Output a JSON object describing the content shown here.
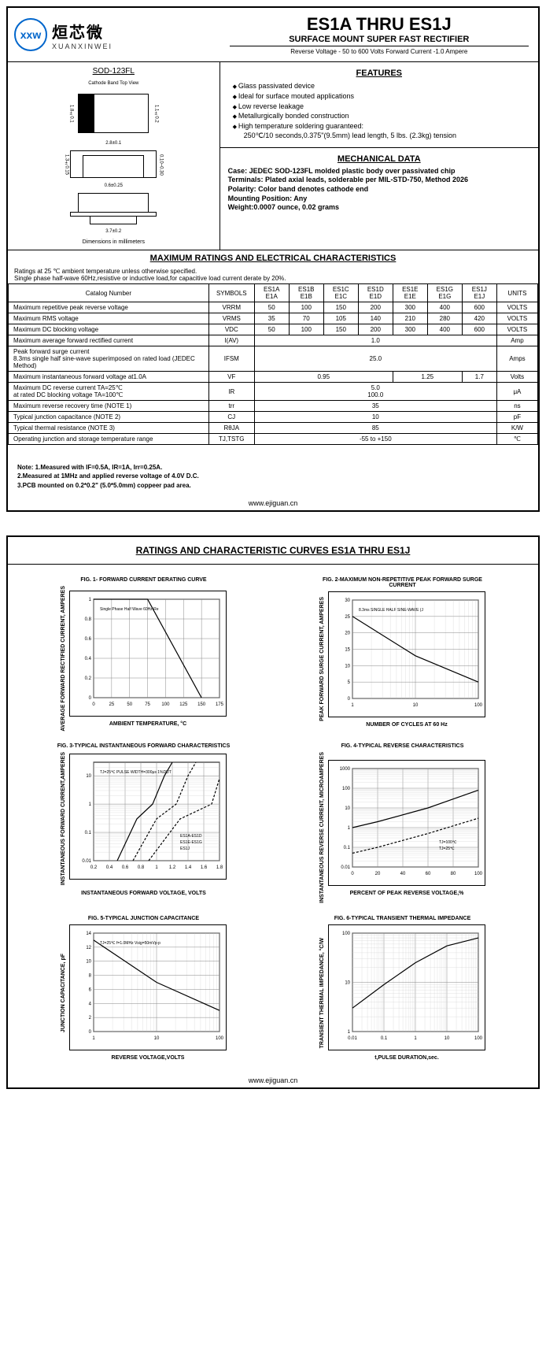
{
  "header": {
    "logo_cn": "烜芯微",
    "logo_en": "XUANXINWEI",
    "logo_mark": "xxw",
    "title": "ES1A THRU ES1J",
    "subtitle": "SURFACE MOUNT SUPER FAST RECTIFIER",
    "spec": "Reverse Voltage - 50 to 600 Volts    Forward Current -1.0 Ampere"
  },
  "package": {
    "label": "SOD-123FL",
    "top_label": "Cathode Band Top View",
    "dim1": "1.8±0.1",
    "dim2": "1.1±0.2",
    "dim3": "2.8±0.1",
    "dim4": "0.10~0.30",
    "dim5": "0.6±0.25",
    "dim6": "1.3±0.15",
    "dim7": "3.7±0.2",
    "note": "Dimensions in millimeters"
  },
  "features": {
    "title": "FEATURES",
    "items": [
      "Glass passivated device",
      "Ideal for surface mouted applications",
      "Low reverse leakage",
      "Metallurgically bonded construction",
      "High temperature soldering guaranteed:"
    ],
    "extra": "250℃/10 seconds,0.375\"(9.5mm) lead length, 5 lbs. (2.3kg) tension"
  },
  "mechanical": {
    "title": "MECHANICAL DATA",
    "case": "Case: JEDEC SOD-123FL molded plastic body over passivated chip",
    "terminals": "Terminals: Plated axial leads, solderable per MIL-STD-750, Method 2026",
    "polarity": "Polarity: Color band denotes cathode end",
    "mounting": "Mounting Position: Any",
    "weight": "Weight:0.0007 ounce, 0.02 grams"
  },
  "ratings": {
    "title": "MAXIMUM RATINGS AND ELECTRICAL CHARACTERISTICS",
    "note": "Ratings at 25 ℃ ambient temperature unless otherwise specified.\nSingle phase half-wave 60Hz,resistive or inductive load,for capacitive load current derate by 20%.",
    "catalog_label": "Catalog      Number",
    "symbols_label": "SYMBOLS",
    "units_label": "UNITS",
    "parts": [
      "ES1A E1A",
      "ES1B E1B",
      "ES1C E1C",
      "ES1D E1D",
      "ES1E E1E",
      "ES1G E1G",
      "ES1J E1J"
    ],
    "rows": [
      {
        "label": "Maximum repetitive peak reverse voltage",
        "sym": "VRRM",
        "vals": [
          "50",
          "100",
          "150",
          "200",
          "300",
          "400",
          "600"
        ],
        "unit": "VOLTS"
      },
      {
        "label": "Maximum RMS voltage",
        "sym": "VRMS",
        "vals": [
          "35",
          "70",
          "105",
          "140",
          "210",
          "280",
          "420"
        ],
        "unit": "VOLTS"
      },
      {
        "label": "Maximum DC blocking voltage",
        "sym": "VDC",
        "vals": [
          "50",
          "100",
          "150",
          "200",
          "300",
          "400",
          "600"
        ],
        "unit": "VOLTS"
      },
      {
        "label": "Maximum average forward rectified current",
        "sym": "I(AV)",
        "span": "1.0",
        "unit": "Amp"
      },
      {
        "label": "Peak forward surge current\n8.3ms single half sine-wave superimposed on rated load (JEDEC Method)",
        "sym": "IFSM",
        "span": "25.0",
        "unit": "Amps"
      },
      {
        "label": "Maximum instantaneous forward voltage at1.0A",
        "sym": "VF",
        "multi": [
          {
            "span": 4,
            "val": "0.95"
          },
          {
            "span": 2,
            "val": "1.25"
          },
          {
            "span": 1,
            "val": "1.7"
          }
        ],
        "unit": "Volts"
      },
      {
        "label": "Maximum DC reverse current   TA=25℃\nat rated DC blocking voltage     TA=100℃",
        "sym": "IR",
        "span": "5.0\n100.0",
        "unit": "μA"
      },
      {
        "label": "Maximum reverse recovery time   (NOTE 1)",
        "sym": "trr",
        "span": "35",
        "unit": "ns"
      },
      {
        "label": "Typical junction capacitance   (NOTE 2)",
        "sym": "CJ",
        "span": "10",
        "unit": "pF"
      },
      {
        "label": "Typical thermal resistance (NOTE 3)",
        "sym": "RθJA",
        "span": "85",
        "unit": "K/W"
      },
      {
        "label": "Operating junction and storage temperature range",
        "sym": "TJ,TSTG",
        "span": "-55 to +150",
        "unit": "℃"
      }
    ],
    "notes": "Note: 1.Measured with IF=0.5A, IR=1A, Irr=0.25A.\n         2.Measured at 1MHz and applied reverse voltage of 4.0V D.C.\n         3.PCB mounted on 0.2*0.2\" (5.0*5.0mm) coppeer pad area."
  },
  "footer_url": "www.ejiguan.cn",
  "page2": {
    "title": "RATINGS AND CHARACTERISTIC CURVES ES1A THRU ES1J",
    "charts": [
      {
        "title": "FIG. 1- FORWARD CURRENT DERATING CURVE",
        "ylabel": "AVERAGE FORWARD RECTIFIED CURRENT, AMPERES",
        "xlabel": "AMBIENT TEMPERATURE, °C",
        "xrange": [
          0,
          175
        ],
        "yrange": [
          0,
          1.0
        ],
        "xticks": [
          0,
          25,
          50,
          75,
          100,
          125,
          150,
          175
        ],
        "yticks": [
          0,
          0.2,
          0.4,
          0.6,
          0.8,
          1.0
        ],
        "note": "Single Phase Half Wave 60Hz Resistive or Inductive Load",
        "line": [
          [
            0,
            1.0
          ],
          [
            75,
            1.0
          ],
          [
            150,
            0
          ]
        ]
      },
      {
        "title": "FIG. 2-MAXIMUM NON-REPETITIVE PEAK FORWARD SURGE CURRENT",
        "ylabel": "PEAK FORWARD SURGE CURRENT, AMPERES",
        "xlabel": "NUMBER OF CYCLES AT 60 Hz",
        "xrange": [
          1,
          100
        ],
        "yrange": [
          0,
          30
        ],
        "xlog": true,
        "xticks": [
          1,
          10,
          100
        ],
        "yticks": [
          0,
          5,
          10,
          15,
          20,
          25,
          30
        ],
        "note": "8.3ms SINGLE HALF SINE-WAVE (JEDEC Method)",
        "line": [
          [
            1,
            25
          ],
          [
            10,
            13
          ],
          [
            100,
            5
          ]
        ]
      },
      {
        "title": "FIG. 3-TYPICAL INSTANTANEOUS FORWARD CHARACTERISTICS",
        "ylabel": "INSTANTANEOUS FORWARD CURRENT,AMPERES",
        "xlabel": "",
        "sublabel": "INSTANTANEOUS FORWARD VOLTAGE, VOLTS",
        "xrange": [
          0.2,
          1.8
        ],
        "yrange": [
          0.01,
          30
        ],
        "ylog": true,
        "xticks": [
          0.2,
          0.4,
          0.6,
          0.8,
          1.0,
          1.2,
          1.4,
          1.6,
          1.8
        ],
        "note": "TJ=25℃ PULSE WIDTH=300μs 1%DUTY CYCLE",
        "legend": [
          "ES1A-ES1D",
          "ES1E-ES1G",
          "ES1J"
        ],
        "lines": [
          [
            [
              0.5,
              0.01
            ],
            [
              0.75,
              0.3
            ],
            [
              0.95,
              1.0
            ],
            [
              1.1,
              10
            ],
            [
              1.2,
              30
            ]
          ],
          [
            [
              0.7,
              0.01
            ],
            [
              1.0,
              0.3
            ],
            [
              1.25,
              1.0
            ],
            [
              1.4,
              10
            ],
            [
              1.5,
              30
            ]
          ],
          [
            [
              0.9,
              0.01
            ],
            [
              1.3,
              0.3
            ],
            [
              1.7,
              1.0
            ],
            [
              1.8,
              8
            ]
          ]
        ]
      },
      {
        "title": "FIG. 4-TYPICAL REVERSE CHARACTERISTICS",
        "ylabel": "INSTANTANEOUS REVERSE CURRENT, MICROAMPERES",
        "xlabel": "PERCENT OF PEAK REVERSE VOLTAGE,%",
        "xrange": [
          0,
          100
        ],
        "yrange": [
          0.01,
          1000
        ],
        "ylog": true,
        "xticks": [
          0,
          20,
          40,
          60,
          80,
          100
        ],
        "legend": [
          "TJ=100℃",
          "TJ=25℃"
        ],
        "lines": [
          [
            [
              0,
              1
            ],
            [
              20,
              2
            ],
            [
              60,
              10
            ],
            [
              100,
              80
            ]
          ],
          [
            [
              0,
              0.05
            ],
            [
              20,
              0.1
            ],
            [
              60,
              0.5
            ],
            [
              100,
              3
            ]
          ]
        ]
      },
      {
        "title": "FIG. 5-TYPICAL JUNCTION CAPACITANCE",
        "ylabel": "JUNCTION CAPACITANCE, pF",
        "xlabel": "REVERSE VOLTAGE,VOLTS",
        "xrange": [
          1,
          100
        ],
        "yrange": [
          0,
          14
        ],
        "xlog": true,
        "xticks": [
          1,
          10,
          100
        ],
        "yticks": [
          0,
          2,
          4,
          6,
          8,
          10,
          12,
          14
        ],
        "note": "TJ=25℃ f=1.0MHz Vsig=50mVp-p",
        "line": [
          [
            1,
            13
          ],
          [
            10,
            7
          ],
          [
            100,
            3
          ]
        ]
      },
      {
        "title": "FIG. 6-TYPICAL TRANSIENT THERMAL IMPEDANCE",
        "ylabel": "TRANSIENT THERMAL IMPEDANCE, °C/W",
        "xlabel": "t,PULSE DURATION,sec.",
        "xrange": [
          0.01,
          100
        ],
        "yrange": [
          1,
          100
        ],
        "xlog": true,
        "ylog": true,
        "xticks": [
          0.01,
          0.1,
          1,
          10,
          100
        ],
        "line": [
          [
            0.01,
            3
          ],
          [
            0.1,
            9
          ],
          [
            1,
            25
          ],
          [
            10,
            55
          ],
          [
            100,
            80
          ]
        ]
      }
    ]
  }
}
